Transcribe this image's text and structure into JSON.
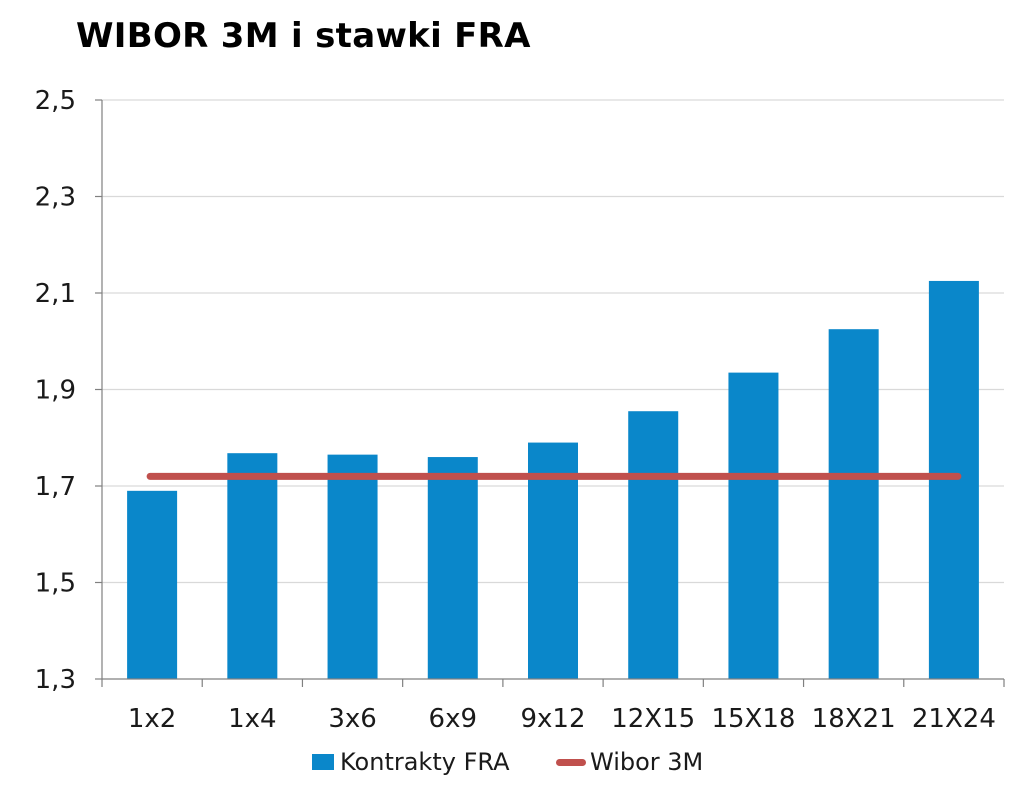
{
  "chart_data": {
    "type": "bar",
    "title": "WIBOR 3M i stawki FRA",
    "xlabel": "",
    "ylabel": "",
    "ylim": [
      1.3,
      2.5
    ],
    "yticks": [
      "1,3",
      "1,5",
      "1,7",
      "1,9",
      "2,1",
      "2,3",
      "2,5"
    ],
    "ytick_values": [
      1.3,
      1.5,
      1.7,
      1.9,
      2.1,
      2.3,
      2.5
    ],
    "grid": true,
    "legend_position": "bottom",
    "categories": [
      "1x2",
      "1x4",
      "3x6",
      "6x9",
      "9x12",
      "12X15",
      "15X18",
      "18X21",
      "21X24"
    ],
    "series": [
      {
        "name": "Kontrakty FRA",
        "type": "bar",
        "color": "#0a87ca",
        "values": [
          1.69,
          1.768,
          1.765,
          1.76,
          1.79,
          1.855,
          1.935,
          2.025,
          2.125
        ]
      },
      {
        "name": "Wibor 3M",
        "type": "line",
        "color": "#c0504d",
        "values": [
          1.72,
          1.72,
          1.72,
          1.72,
          1.72,
          1.72,
          1.72,
          1.72,
          1.72
        ]
      }
    ]
  }
}
